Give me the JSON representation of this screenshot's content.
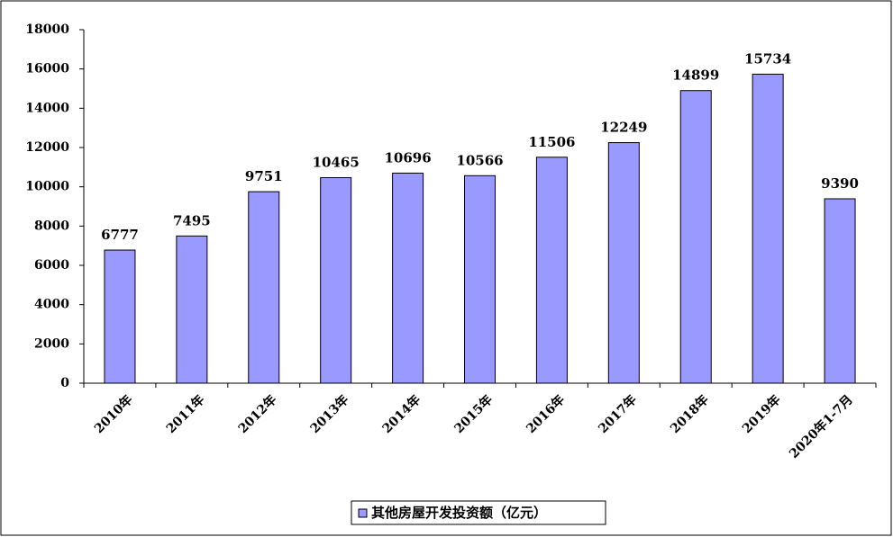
{
  "chart_data": {
    "type": "bar",
    "categories": [
      "2010年",
      "2011年",
      "2012年",
      "2013年",
      "2014年",
      "2015年",
      "2016年",
      "2017年",
      "2018年",
      "2019年",
      "2020年1-7月"
    ],
    "series": [
      {
        "name": "其他房屋开发投资额（亿元）",
        "color": "#9999ff",
        "values": [
          6777,
          7495,
          9751,
          10465,
          10696,
          10566,
          11506,
          12249,
          14899,
          15734,
          9390
        ]
      }
    ],
    "ylim": [
      0,
      18000
    ],
    "yticks": [
      0,
      2000,
      4000,
      6000,
      8000,
      10000,
      12000,
      14000,
      16000,
      18000
    ],
    "grid": false,
    "legend": "bottom"
  }
}
